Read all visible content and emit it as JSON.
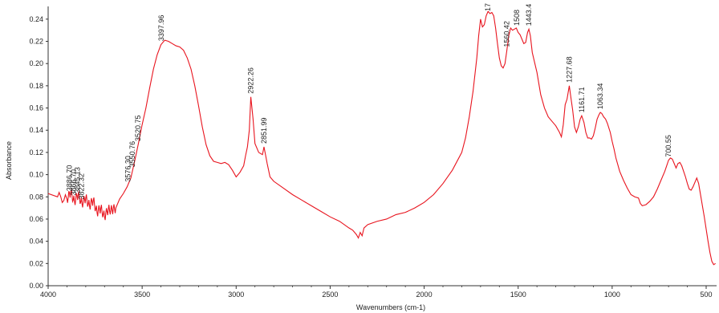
{
  "chart_data": {
    "type": "line",
    "title": "",
    "xlabel": "Wavenumbers (cm-1)",
    "ylabel": "Absorbance",
    "xlim": [
      4000,
      450
    ],
    "ylim": [
      0,
      0.25
    ],
    "x_reversed": true,
    "grid": false,
    "x_ticks": [
      4000,
      3500,
      3000,
      2500,
      2000,
      1500,
      1000,
      500
    ],
    "y_ticks": [
      0.0,
      0.02,
      0.04,
      0.06,
      0.08,
      0.1,
      0.12,
      0.14,
      0.16,
      0.18,
      0.2,
      0.22,
      0.24
    ],
    "y_tick_labels": [
      "0.00",
      "0.02",
      "0.04",
      "0.06",
      "0.08",
      "0.10",
      "0.12",
      "0.14",
      "0.16",
      "0.18",
      "0.20",
      "0.22",
      "0.24"
    ],
    "series": [
      {
        "color": "#e8141e",
        "x": [
          4000,
          3950,
          3900,
          3880,
          3860,
          3840,
          3820,
          3800,
          3780,
          3760,
          3740,
          3720,
          3700,
          3680,
          3660,
          3640,
          3620,
          3600,
          3580,
          3560,
          3540,
          3520,
          3500,
          3480,
          3460,
          3440,
          3420,
          3400,
          3380,
          3360,
          3340,
          3320,
          3300,
          3280,
          3260,
          3240,
          3220,
          3200,
          3180,
          3160,
          3140,
          3120,
          3100,
          3080,
          3060,
          3040,
          3020,
          3000,
          2980,
          2960,
          2950,
          2940,
          2930,
          2922,
          2910,
          2900,
          2880,
          2870,
          2860,
          2852,
          2845,
          2835,
          2820,
          2800,
          2750,
          2700,
          2650,
          2600,
          2550,
          2500,
          2450,
          2400,
          2380,
          2360,
          2350,
          2340,
          2330,
          2320,
          2300,
          2250,
          2200,
          2150,
          2100,
          2050,
          2000,
          1950,
          1900,
          1850,
          1800,
          1780,
          1760,
          1740,
          1720,
          1710,
          1700,
          1690,
          1680,
          1670,
          1660,
          1650,
          1640,
          1630,
          1620,
          1610,
          1600,
          1590,
          1580,
          1570,
          1560,
          1550,
          1540,
          1530,
          1520,
          1510,
          1500,
          1490,
          1480,
          1470,
          1460,
          1450,
          1443,
          1435,
          1425,
          1400,
          1380,
          1360,
          1340,
          1320,
          1300,
          1280,
          1270,
          1260,
          1250,
          1240,
          1228,
          1220,
          1210,
          1200,
          1190,
          1180,
          1170,
          1162,
          1150,
          1140,
          1130,
          1120,
          1110,
          1100,
          1090,
          1080,
          1070,
          1063,
          1055,
          1045,
          1035,
          1025,
          1010,
          1000,
          990,
          980,
          960,
          940,
          920,
          900,
          880,
          860,
          850,
          840,
          820,
          800,
          780,
          760,
          740,
          720,
          710,
          700,
          690,
          680,
          670,
          660,
          650,
          640,
          630,
          620,
          610,
          600,
          590,
          580,
          570,
          560,
          550,
          540,
          530,
          520,
          510,
          500,
          490,
          480,
          470,
          460,
          450
        ],
        "y": [
          0.083,
          0.08,
          0.078,
          0.084,
          0.076,
          0.082,
          0.074,
          0.079,
          0.072,
          0.077,
          0.066,
          0.07,
          0.062,
          0.069,
          0.068,
          0.07,
          0.078,
          0.083,
          0.089,
          0.097,
          0.112,
          0.128,
          0.145,
          0.16,
          0.178,
          0.195,
          0.208,
          0.217,
          0.221,
          0.22,
          0.218,
          0.216,
          0.215,
          0.212,
          0.205,
          0.195,
          0.18,
          0.162,
          0.143,
          0.127,
          0.117,
          0.112,
          0.111,
          0.11,
          0.111,
          0.109,
          0.104,
          0.098,
          0.102,
          0.108,
          0.117,
          0.125,
          0.14,
          0.17,
          0.15,
          0.128,
          0.12,
          0.119,
          0.118,
          0.125,
          0.119,
          0.11,
          0.098,
          0.094,
          0.088,
          0.082,
          0.077,
          0.072,
          0.067,
          0.062,
          0.058,
          0.052,
          0.05,
          0.046,
          0.043,
          0.048,
          0.045,
          0.052,
          0.055,
          0.058,
          0.06,
          0.064,
          0.066,
          0.07,
          0.075,
          0.082,
          0.092,
          0.104,
          0.12,
          0.133,
          0.152,
          0.175,
          0.205,
          0.225,
          0.24,
          0.233,
          0.235,
          0.243,
          0.247,
          0.245,
          0.246,
          0.243,
          0.232,
          0.218,
          0.205,
          0.198,
          0.196,
          0.2,
          0.212,
          0.225,
          0.232,
          0.23,
          0.231,
          0.232,
          0.228,
          0.226,
          0.222,
          0.218,
          0.219,
          0.228,
          0.231,
          0.225,
          0.21,
          0.192,
          0.172,
          0.16,
          0.152,
          0.148,
          0.144,
          0.138,
          0.134,
          0.145,
          0.163,
          0.168,
          0.18,
          0.17,
          0.158,
          0.143,
          0.138,
          0.143,
          0.15,
          0.153,
          0.147,
          0.138,
          0.133,
          0.133,
          0.132,
          0.135,
          0.142,
          0.15,
          0.154,
          0.156,
          0.155,
          0.152,
          0.15,
          0.146,
          0.138,
          0.13,
          0.123,
          0.115,
          0.103,
          0.095,
          0.088,
          0.082,
          0.08,
          0.079,
          0.074,
          0.072,
          0.073,
          0.076,
          0.08,
          0.087,
          0.095,
          0.103,
          0.108,
          0.113,
          0.115,
          0.114,
          0.11,
          0.106,
          0.11,
          0.111,
          0.108,
          0.103,
          0.098,
          0.092,
          0.087,
          0.086,
          0.089,
          0.093,
          0.097,
          0.092,
          0.082,
          0.072,
          0.062,
          0.051,
          0.04,
          0.03,
          0.022,
          0.019,
          0.02
        ]
      }
    ],
    "peaks": [
      {
        "label": "3397.96",
        "x": 3398
      },
      {
        "label": "2922.26",
        "x": 2922
      },
      {
        "label": "2851.99",
        "x": 2852
      },
      {
        "label": "3520.75",
        "x": 3521
      },
      {
        "label": "3550.76",
        "x": 3551
      },
      {
        "label": "3576.30",
        "x": 3576
      },
      {
        "label": "3822.32",
        "x": 3822
      },
      {
        "label": "3845.13",
        "x": 3845
      },
      {
        "label": "3866.70",
        "x": 3866
      },
      {
        "label": "3886.70",
        "x": 3886
      },
      {
        "label": "1560.42",
        "x": 1560
      },
      {
        "label": "1508",
        "x": 1508
      },
      {
        "label": "1443.4",
        "x": 1443
      },
      {
        "label": "1227.68",
        "x": 1228
      },
      {
        "label": "1161.71",
        "x": 1162
      },
      {
        "label": "1063.34",
        "x": 1063
      },
      {
        "label": "700.55",
        "x": 700
      },
      {
        "label": "17",
        "x": 1660
      }
    ]
  }
}
